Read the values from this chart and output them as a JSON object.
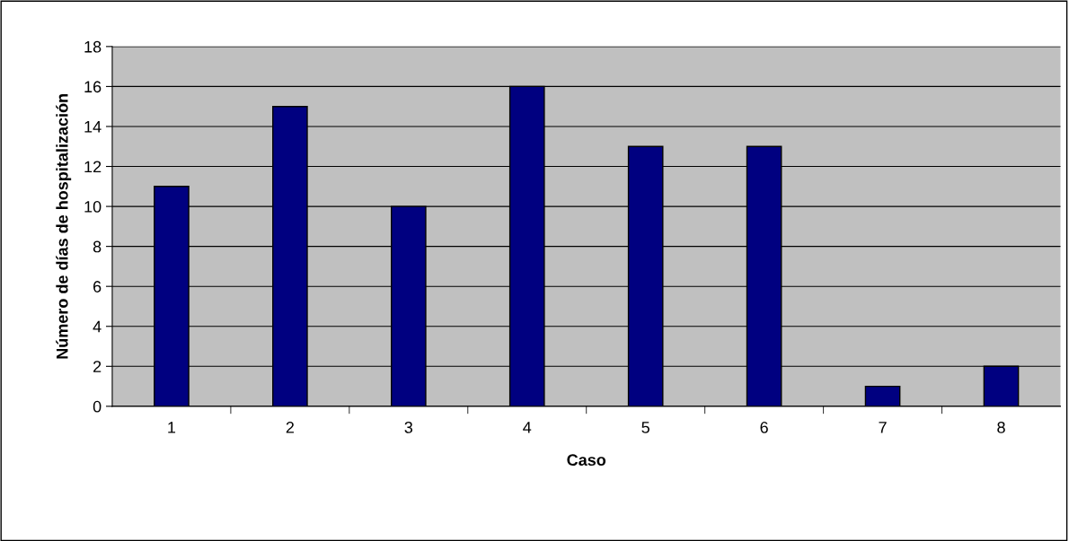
{
  "chart_data": {
    "type": "bar",
    "xlabel": "Caso",
    "ylabel": "Número de días de hospitalización",
    "categories": [
      "1",
      "2",
      "3",
      "4",
      "5",
      "6",
      "7",
      "8"
    ],
    "values": [
      11,
      15,
      10,
      16,
      13,
      13,
      1,
      2
    ],
    "color": "#000080",
    "ylim": [
      0,
      18
    ],
    "yticks": [
      0,
      2,
      4,
      6,
      8,
      10,
      12,
      14,
      16,
      18
    ],
    "grid": "y",
    "legend": false
  }
}
